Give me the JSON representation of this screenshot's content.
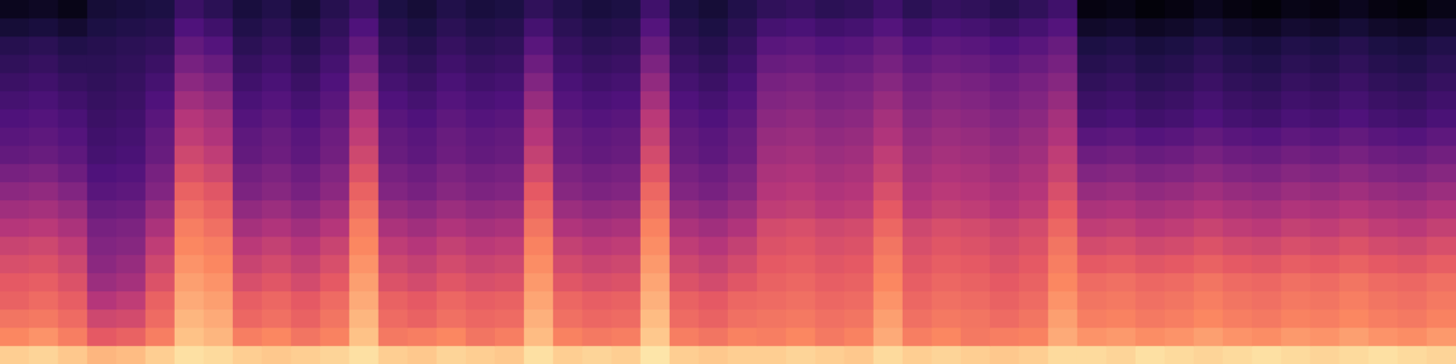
{
  "chart_data": {
    "type": "heatmap",
    "tick_labels": false,
    "zlim": [
      -80,
      0
    ],
    "cells": [
      [
        -8,
        -7,
        -9,
        -12,
        -11,
        -8,
        -5,
        -6,
        -8,
        -9,
        -8,
        -7,
        -5,
        -8,
        -9,
        -7,
        -8,
        -9,
        -5,
        -8,
        -7,
        -8,
        -4,
        -8,
        -9,
        -8,
        -8,
        -7,
        -8,
        -9,
        -6,
        -8,
        -7,
        -8,
        -9,
        -8,
        -6,
        -6,
        -7,
        -5,
        -6,
        -7,
        -6,
        -5,
        -6,
        -7,
        -6,
        -5,
        -6,
        -7
      ],
      [
        -20,
        -18,
        -22,
        -30,
        -28,
        -22,
        -10,
        -12,
        -22,
        -20,
        -24,
        -21,
        -10,
        -23,
        -22,
        -20,
        -24,
        -22,
        -11,
        -21,
        -23,
        -22,
        -9,
        -22,
        -24,
        -21,
        -22,
        -20,
        -23,
        -21,
        -14,
        -22,
        -20,
        -23,
        -22,
        -21,
        -14,
        -18,
        -17,
        -19,
        -18,
        -16,
        -18,
        -19,
        -17,
        -18,
        -16,
        -18,
        -19,
        -17
      ],
      [
        -24,
        -23,
        -26,
        -35,
        -34,
        -26,
        -12,
        -14,
        -27,
        -25,
        -28,
        -24,
        -12,
        -26,
        -28,
        -25,
        -27,
        -26,
        -13,
        -25,
        -27,
        -26,
        -11,
        -26,
        -28,
        -25,
        -24,
        -23,
        -25,
        -24,
        -16,
        -25,
        -23,
        -24,
        -26,
        -24,
        -16,
        -22,
        -21,
        -23,
        -22,
        -20,
        -22,
        -23,
        -21,
        -22,
        -20,
        -22,
        -23,
        -21
      ],
      [
        -28,
        -26,
        -29,
        -40,
        -38,
        -28,
        -14,
        -16,
        -29,
        -27,
        -30,
        -26,
        -14,
        -28,
        -30,
        -27,
        -29,
        -28,
        -15,
        -27,
        -29,
        -28,
        -13,
        -28,
        -30,
        -27,
        -26,
        -25,
        -27,
        -26,
        -18,
        -27,
        -25,
        -26,
        -28,
        -26,
        -18,
        -24,
        -23,
        -25,
        -24,
        -22,
        -24,
        -25,
        -23,
        -24,
        -22,
        -24,
        -25,
        -23
      ],
      [
        -30,
        -29,
        -32,
        -45,
        -43,
        -32,
        -16,
        -18,
        -33,
        -31,
        -34,
        -30,
        -16,
        -32,
        -34,
        -31,
        -33,
        -32,
        -17,
        -31,
        -33,
        -32,
        -15,
        -32,
        -34,
        -31,
        -28,
        -27,
        -29,
        -28,
        -20,
        -29,
        -27,
        -28,
        -30,
        -28,
        -20,
        -26,
        -25,
        -27,
        -26,
        -24,
        -26,
        -27,
        -25,
        -26,
        -24,
        -26,
        -27,
        -25
      ],
      [
        -33,
        -32,
        -35,
        -48,
        -46,
        -35,
        -18,
        -20,
        -36,
        -34,
        -37,
        -33,
        -18,
        -35,
        -37,
        -34,
        -36,
        -35,
        -19,
        -34,
        -36,
        -35,
        -17,
        -35,
        -37,
        -34,
        -30,
        -29,
        -31,
        -30,
        -22,
        -31,
        -29,
        -30,
        -32,
        -30,
        -22,
        -30,
        -29,
        -31,
        -30,
        -28,
        -30,
        -31,
        -29,
        -30,
        -28,
        -30,
        -31,
        -29
      ],
      [
        -36,
        -35,
        -38,
        -50,
        -49,
        -38,
        -20,
        -22,
        -39,
        -37,
        -40,
        -36,
        -20,
        -38,
        -40,
        -37,
        -39,
        -38,
        -21,
        -37,
        -39,
        -38,
        -19,
        -38,
        -40,
        -37,
        -32,
        -31,
        -33,
        -32,
        -24,
        -33,
        -31,
        -32,
        -34,
        -32,
        -24,
        -34,
        -33,
        -35,
        -34,
        -32,
        -34,
        -35,
        -33,
        -34,
        -32,
        -34,
        -35,
        -33
      ],
      [
        -40,
        -39,
        -42,
        -52,
        -51,
        -42,
        -22,
        -25,
        -43,
        -41,
        -44,
        -40,
        -22,
        -42,
        -44,
        -41,
        -43,
        -42,
        -24,
        -41,
        -43,
        -42,
        -21,
        -42,
        -44,
        -41,
        -34,
        -33,
        -35,
        -34,
        -27,
        -35,
        -33,
        -34,
        -36,
        -34,
        -27,
        -38,
        -37,
        -39,
        -38,
        -36,
        -38,
        -39,
        -37,
        -38,
        -36,
        -38,
        -39,
        -37
      ],
      [
        -44,
        -43,
        -46,
        -55,
        -54,
        -46,
        -25,
        -28,
        -47,
        -45,
        -48,
        -44,
        -25,
        -46,
        -48,
        -45,
        -47,
        -46,
        -27,
        -45,
        -47,
        -46,
        -24,
        -46,
        -48,
        -45,
        -38,
        -37,
        -39,
        -38,
        -30,
        -39,
        -37,
        -38,
        -40,
        -38,
        -30,
        -42,
        -41,
        -43,
        -42,
        -40,
        -42,
        -43,
        -41,
        -42,
        -40,
        -42,
        -43,
        -41
      ],
      [
        -48,
        -47,
        -50,
        -58,
        -57,
        -50,
        -28,
        -31,
        -51,
        -49,
        -52,
        -48,
        -28,
        -50,
        -52,
        -49,
        -51,
        -50,
        -30,
        -49,
        -51,
        -50,
        -27,
        -50,
        -52,
        -49,
        -40,
        -39,
        -41,
        -40,
        -33,
        -41,
        -39,
        -40,
        -42,
        -40,
        -33,
        -46,
        -45,
        -47,
        -46,
        -44,
        -46,
        -47,
        -45,
        -46,
        -44,
        -46,
        -47,
        -45
      ],
      [
        -52,
        -51,
        -54,
        -60,
        -59,
        -52,
        -32,
        -35,
        -53,
        -51,
        -54,
        -50,
        -32,
        -52,
        -54,
        -51,
        -53,
        -52,
        -34,
        -51,
        -53,
        -52,
        -31,
        -52,
        -54,
        -51,
        -42,
        -41,
        -43,
        -42,
        -36,
        -43,
        -41,
        -42,
        -44,
        -42,
        -36,
        -50,
        -49,
        -51,
        -50,
        -48,
        -50,
        -51,
        -49,
        -50,
        -48,
        -50,
        -51,
        -49
      ],
      [
        -56,
        -55,
        -57,
        -62,
        -61,
        -55,
        -35,
        -38,
        -56,
        -54,
        -57,
        -53,
        -35,
        -55,
        -57,
        -54,
        -56,
        -55,
        -37,
        -54,
        -56,
        -55,
        -34,
        -55,
        -57,
        -54,
        -44,
        -43,
        -45,
        -44,
        -38,
        -45,
        -43,
        -44,
        -46,
        -44,
        -38,
        -54,
        -53,
        -55,
        -54,
        -52,
        -54,
        -55,
        -53,
        -54,
        -52,
        -54,
        -55,
        -53
      ],
      [
        -58,
        -57,
        -59,
        -63,
        -62,
        -56,
        -38,
        -41,
        -57,
        -55,
        -58,
        -54,
        -38,
        -56,
        -58,
        -55,
        -57,
        -56,
        -40,
        -55,
        -57,
        -56,
        -37,
        -56,
        -58,
        -55,
        -46,
        -45,
        -47,
        -46,
        -41,
        -47,
        -45,
        -46,
        -48,
        -46,
        -41,
        -58,
        -57,
        -59,
        -58,
        -56,
        -58,
        -59,
        -57,
        -58,
        -56,
        -58,
        -59,
        -57
      ],
      [
        -60,
        -59,
        -61,
        -64,
        -63,
        -58,
        -40,
        -43,
        -59,
        -57,
        -60,
        -56,
        -40,
        -58,
        -60,
        -57,
        -59,
        -58,
        -42,
        -57,
        -59,
        -58,
        -39,
        -58,
        -60,
        -57,
        -48,
        -47,
        -49,
        -48,
        -43,
        -49,
        -47,
        -48,
        -50,
        -48,
        -43,
        -62,
        -61,
        -63,
        -62,
        -60,
        -62,
        -63,
        -61,
        -62,
        -60,
        -62,
        -63,
        -61
      ],
      [
        -62,
        -61,
        -63,
        -65,
        -64,
        -60,
        -44,
        -47,
        -61,
        -59,
        -62,
        -58,
        -44,
        -60,
        -62,
        -59,
        -61,
        -60,
        -46,
        -59,
        -61,
        -60,
        -43,
        -60,
        -62,
        -59,
        -50,
        -49,
        -51,
        -50,
        -46,
        -51,
        -49,
        -50,
        -52,
        -50,
        -46,
        -64,
        -63,
        -65,
        -64,
        -62,
        -64,
        -65,
        -63,
        -64,
        -62,
        -64,
        -65,
        -63
      ],
      [
        -64,
        -63,
        -65,
        -66,
        -65,
        -62,
        -48,
        -51,
        -63,
        -61,
        -64,
        -60,
        -48,
        -62,
        -64,
        -61,
        -63,
        -62,
        -50,
        -61,
        -63,
        -62,
        -47,
        -62,
        -64,
        -61,
        -52,
        -51,
        -53,
        -52,
        -49,
        -53,
        -51,
        -52,
        -54,
        -52,
        -49,
        -66,
        -65,
        -67,
        -66,
        -64,
        -66,
        -67,
        -65,
        -66,
        -64,
        -66,
        -67,
        -65
      ],
      [
        -66,
        -65,
        -67,
        -67,
        -66,
        -64,
        -52,
        -55,
        -65,
        -63,
        -66,
        -62,
        -52,
        -64,
        -66,
        -63,
        -65,
        -64,
        -54,
        -63,
        -65,
        -64,
        -51,
        -64,
        -66,
        -63,
        -55,
        -54,
        -56,
        -55,
        -52,
        -56,
        -54,
        -55,
        -57,
        -55,
        -52,
        -68,
        -67,
        -69,
        -68,
        -66,
        -68,
        -69,
        -67,
        -68,
        -66,
        -68,
        -69,
        -67
      ],
      [
        -68,
        -67,
        -69,
        -68,
        -67,
        -66,
        -56,
        -59,
        -67,
        -65,
        -68,
        -64,
        -56,
        -66,
        -68,
        -65,
        -67,
        -66,
        -58,
        -65,
        -67,
        -66,
        -55,
        -66,
        -68,
        -65,
        -58,
        -57,
        -59,
        -58,
        -55,
        -59,
        -57,
        -58,
        -60,
        -58,
        -55,
        -70,
        -69,
        -71,
        -70,
        -68,
        -70,
        -71,
        -69,
        -70,
        -68,
        -70,
        -71,
        -69
      ],
      [
        -72,
        -71,
        -73,
        -70,
        -69,
        -68,
        -60,
        -63,
        -69,
        -67,
        -70,
        -66,
        -60,
        -68,
        -70,
        -67,
        -69,
        -68,
        -62,
        -67,
        -69,
        -68,
        -59,
        -68,
        -70,
        -67,
        -62,
        -61,
        -63,
        -62,
        -59,
        -63,
        -61,
        -62,
        -64,
        -62,
        -59,
        -74,
        -73,
        -75,
        -74,
        -72,
        -74,
        -75,
        -73,
        -74,
        -72,
        -74,
        -75,
        -73
      ],
      [
        -76,
        -75,
        -77,
        -72,
        -71,
        -70,
        -64,
        -67,
        -71,
        -69,
        -72,
        -68,
        -64,
        -70,
        -72,
        -69,
        -71,
        -70,
        -66,
        -69,
        -71,
        -70,
        -63,
        -70,
        -72,
        -69,
        -66,
        -65,
        -67,
        -66,
        -63,
        -67,
        -65,
        -66,
        -68,
        -66,
        -63,
        -78,
        -77,
        -79,
        -78,
        -76,
        -78,
        -79,
        -77,
        -78,
        -76,
        -78,
        -79,
        -77
      ]
    ]
  }
}
